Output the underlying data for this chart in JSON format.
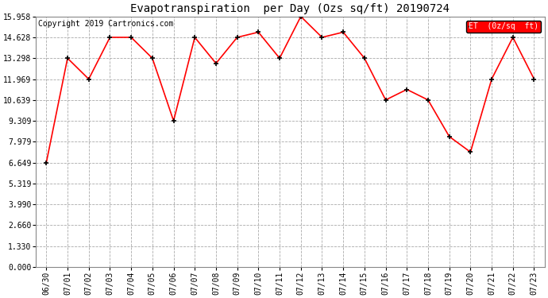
{
  "title": "Evapotranspiration  per Day (Ozs sq/ft) 20190724",
  "copyright": "Copyright 2019 Cartronics.com",
  "legend_label": "ET  (0z/sq  ft)",
  "x_labels": [
    "06/30",
    "07/01",
    "07/02",
    "07/03",
    "07/04",
    "07/05",
    "07/06",
    "07/07",
    "07/08",
    "07/09",
    "07/10",
    "07/11",
    "07/12",
    "07/13",
    "07/14",
    "07/15",
    "07/16",
    "07/17",
    "07/18",
    "07/19",
    "07/20",
    "07/21",
    "07/22",
    "07/23"
  ],
  "y_values": [
    6.649,
    13.298,
    11.969,
    14.628,
    14.628,
    13.298,
    9.309,
    14.628,
    12.969,
    14.628,
    14.958,
    13.298,
    15.958,
    14.628,
    14.958,
    13.298,
    10.639,
    11.309,
    10.639,
    8.309,
    7.319,
    11.969,
    14.628,
    11.969
  ],
  "y_ticks": [
    0.0,
    1.33,
    2.66,
    3.99,
    5.319,
    6.649,
    7.979,
    9.309,
    10.639,
    11.969,
    13.298,
    14.628,
    15.958
  ],
  "line_color": "red",
  "marker_color": "black",
  "bg_color": "#ffffff",
  "grid_color": "#aaaaaa",
  "legend_bg": "red",
  "legend_text_color": "white",
  "title_fontsize": 10,
  "copyright_fontsize": 7,
  "ylim": [
    0.0,
    15.958
  ],
  "xlim": [
    -0.5,
    23.5
  ],
  "tick_fontsize": 7,
  "ytick_fontsize": 7
}
